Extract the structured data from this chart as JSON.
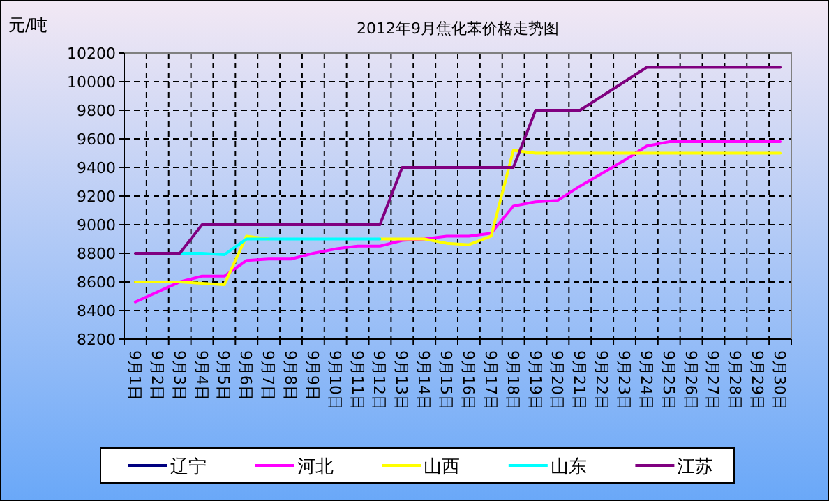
{
  "chart_data": {
    "type": "line",
    "title": "2012年9月焦化苯价格走势图",
    "ylabel": "元/吨",
    "categories": [
      "9月1日",
      "9月2日",
      "9月3日",
      "9月4日",
      "9月5日",
      "9月6日",
      "9月7日",
      "9月8日",
      "9月9日",
      "9月10日",
      "9月11日",
      "9月12日",
      "9月13日",
      "9月14日",
      "9月15日",
      "9月16日",
      "9月17日",
      "9月18日",
      "9月19日",
      "9月20日",
      "9月21日",
      "9月22日",
      "9月23日",
      "9月24日",
      "9月25日",
      "9月26日",
      "9月27日",
      "9月28日",
      "9月29日",
      "9月30日"
    ],
    "series": [
      {
        "name": "辽宁",
        "color": "#000080",
        "values": [
          null,
          null,
          null,
          null,
          null,
          null,
          null,
          null,
          null,
          null,
          null,
          null,
          null,
          null,
          null,
          null,
          null,
          null,
          null,
          null,
          null,
          null,
          null,
          null,
          null,
          null,
          null,
          null,
          null,
          null
        ]
      },
      {
        "name": "河北",
        "color": "#ff00ff",
        "values": [
          8460,
          8530,
          8600,
          8640,
          8640,
          8750,
          8760,
          8760,
          8800,
          8830,
          8850,
          8850,
          8890,
          8900,
          8920,
          8920,
          8940,
          9130,
          9160,
          9170,
          9270,
          9360,
          9450,
          9550,
          9580,
          9580,
          9580,
          9580,
          9580,
          9580
        ]
      },
      {
        "name": "山西",
        "color": "#ffff00",
        "values": [
          8600,
          8600,
          8600,
          8590,
          8580,
          8920,
          8900,
          null,
          null,
          null,
          null,
          8900,
          8900,
          8900,
          8870,
          8860,
          8920,
          9520,
          9500,
          9500,
          9500,
          9500,
          9500,
          9500,
          9500,
          9500,
          9500,
          9500,
          9500,
          9500
        ]
      },
      {
        "name": "山东",
        "color": "#00ffff",
        "values": [
          null,
          null,
          8800,
          8800,
          8790,
          8900,
          8900,
          8900,
          8900,
          8900,
          8900,
          8900,
          null,
          null,
          null,
          null,
          null,
          null,
          null,
          null,
          null,
          null,
          null,
          null,
          null,
          null,
          null,
          null,
          null,
          null
        ]
      },
      {
        "name": "江苏",
        "color": "#800080",
        "values": [
          8800,
          8800,
          8800,
          9000,
          9000,
          9000,
          9000,
          9000,
          9000,
          9000,
          9000,
          9000,
          9400,
          9400,
          9400,
          9400,
          9400,
          9400,
          9800,
          9800,
          9800,
          9900,
          10000,
          10100,
          10100,
          10100,
          10100,
          10100,
          10100,
          10100
        ]
      }
    ],
    "ylim": [
      8200,
      10200
    ],
    "yticks": [
      8200,
      8400,
      8600,
      8800,
      9000,
      9200,
      9400,
      9600,
      9800,
      10000,
      10200
    ],
    "grid": true,
    "legend": "bottom",
    "marker": "none",
    "line_style": "solid"
  }
}
